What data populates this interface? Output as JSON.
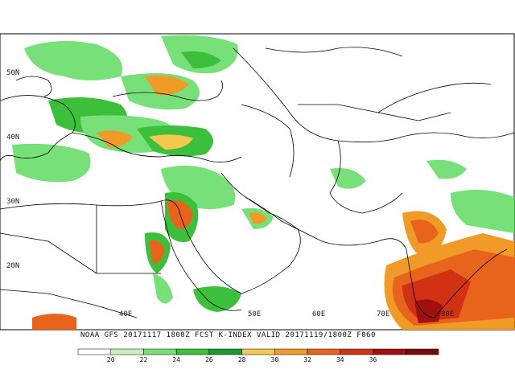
{
  "map": {
    "lat_labels": [
      "50N",
      "40N",
      "30N",
      "20N"
    ],
    "lon_labels": [
      "40E",
      "50E",
      "60E",
      "70E",
      "80E"
    ],
    "caption": "NOAA GFS 20171117 1800Z  FCST K-INDEX    VALID 20171119/1800Z F060",
    "colorbar": {
      "ticks": [
        "20",
        "22",
        "24",
        "26",
        "28",
        "30",
        "32",
        "34",
        "36"
      ],
      "colors": [
        "#ffffff",
        "#c8f0c0",
        "#78e078",
        "#3cc03c",
        "#1a9a32",
        "#f5c850",
        "#f09a28",
        "#e8641c",
        "#d23214",
        "#a01010",
        "#7a0a0a"
      ]
    }
  }
}
